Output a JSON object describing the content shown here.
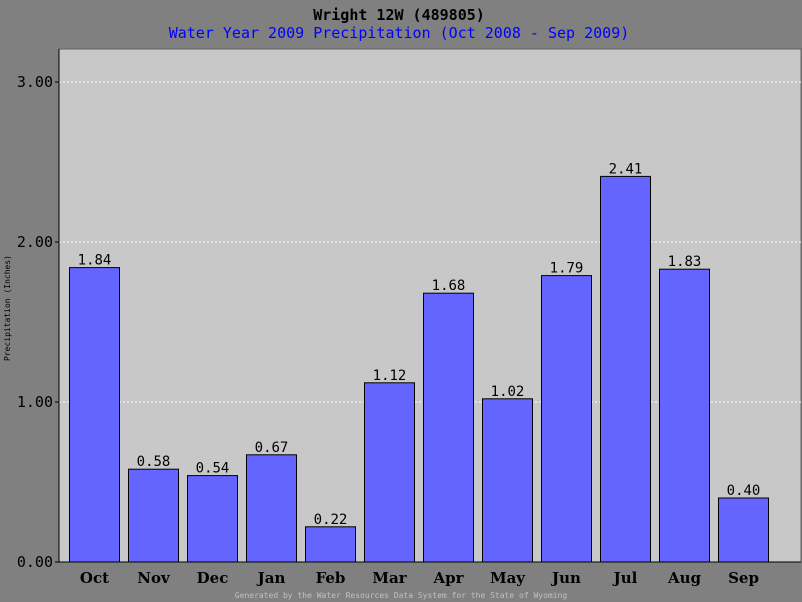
{
  "chart_data": {
    "type": "bar",
    "title": "Wright 12W (489805)",
    "subtitle": "Water Year 2009 Precipitation (Oct 2008 - Sep 2009)",
    "ylabel": "Precipitation (Inches)",
    "xlabel": "",
    "categories": [
      "Oct",
      "Nov",
      "Dec",
      "Jan",
      "Feb",
      "Mar",
      "Apr",
      "May",
      "Jun",
      "Jul",
      "Aug",
      "Sep"
    ],
    "values": [
      1.84,
      0.58,
      0.54,
      0.67,
      0.22,
      1.12,
      1.68,
      1.02,
      1.79,
      2.41,
      1.83,
      0.4
    ],
    "value_labels": [
      "1.84",
      "0.58",
      "0.54",
      "0.67",
      "0.22",
      "1.12",
      "1.68",
      "1.02",
      "1.79",
      "2.41",
      "1.83",
      "0.40"
    ],
    "ylim": [
      0,
      3.0
    ],
    "yticks": [
      0,
      1,
      2,
      3
    ],
    "ytick_labels": [
      "0.00",
      "1.00",
      "2.00",
      "3.00"
    ],
    "grid": true,
    "colors": {
      "background": "#808080",
      "plot_area": "#c8c8c8",
      "bar_fill": "#6464ff",
      "title": "#000000",
      "subtitle": "#0000ff",
      "grid": "#ffffff",
      "footer": "#c0c0c0"
    }
  },
  "footer": "Generated by the Water Resources Data System for the State of Wyoming"
}
